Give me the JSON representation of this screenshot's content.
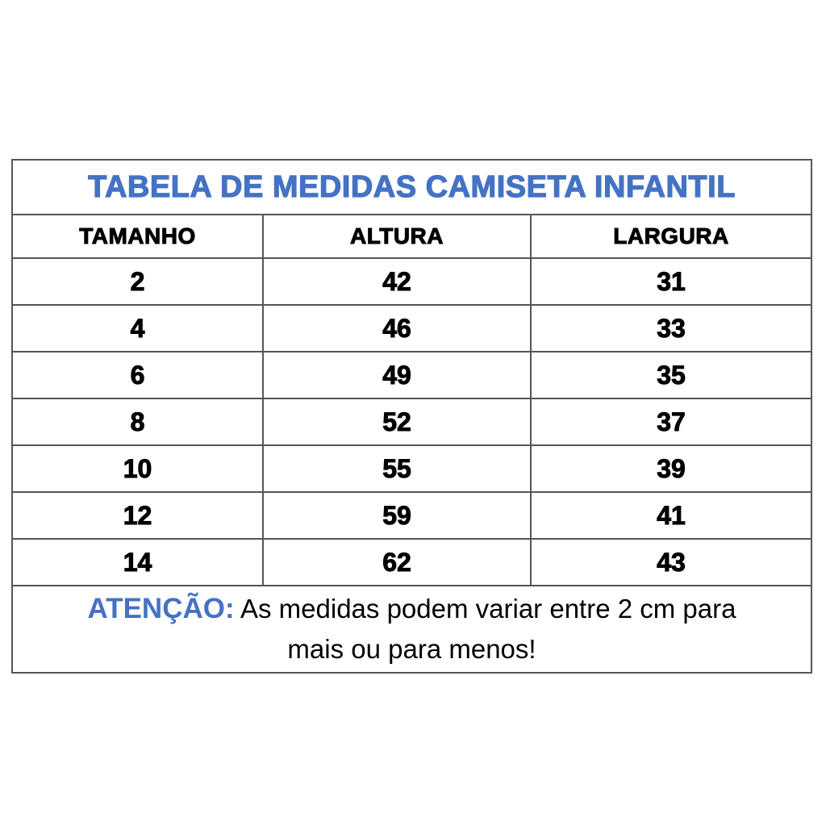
{
  "title": "TABELA DE MEDIDAS CAMISETA INFANTIL",
  "columns": [
    "TAMANHO",
    "ALTURA",
    "LARGURA"
  ],
  "rows": [
    [
      "2",
      "42",
      "31"
    ],
    [
      "4",
      "46",
      "33"
    ],
    [
      "6",
      "49",
      "35"
    ],
    [
      "8",
      "52",
      "37"
    ],
    [
      "10",
      "55",
      "39"
    ],
    [
      "12",
      "59",
      "41"
    ],
    [
      "14",
      "62",
      "43"
    ]
  ],
  "footer": {
    "warning_label": "ATENÇÃO:",
    "text_line1": "As medidas podem variar entre 2 cm para",
    "text_line2": "mais ou para menos!"
  },
  "colors": {
    "accent": "#4472C4",
    "text": "#000000",
    "border": "#555555"
  }
}
